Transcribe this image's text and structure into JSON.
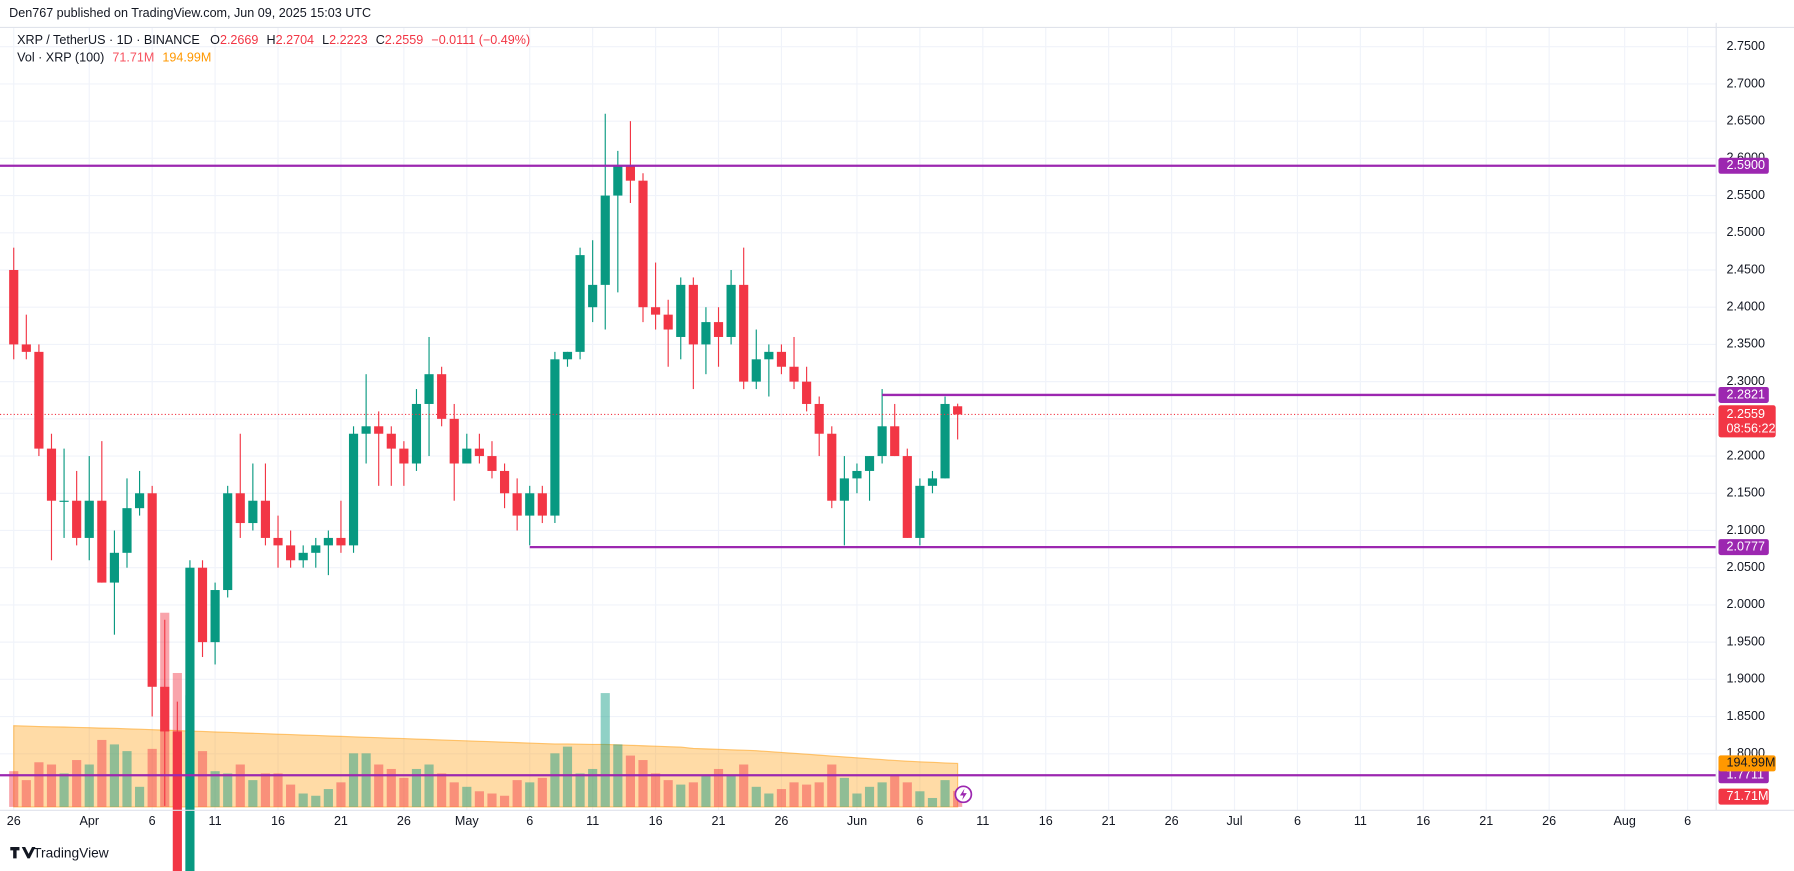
{
  "header": {
    "published": "Den767 published on TradingView.com, Jun 09, 2025 15:03 UTC"
  },
  "chart_data": {
    "type": "candlestick",
    "title": "XRP / TetherUS · 1D · BINANCE",
    "legend": {
      "open_label": "O",
      "open": 2.2669,
      "high_label": "H",
      "high": 2.2704,
      "low_label": "L",
      "low": 2.2223,
      "close_label": "C",
      "close": 2.2559,
      "change": "−0.0111 (−0.49%)"
    },
    "x": [
      "2025-03-26",
      "2025-03-27",
      "2025-03-28",
      "2025-03-29",
      "2025-03-30",
      "2025-03-31",
      "2025-04-01",
      "2025-04-02",
      "2025-04-03",
      "2025-04-04",
      "2025-04-05",
      "2025-04-06",
      "2025-04-07",
      "2025-04-08",
      "2025-04-09",
      "2025-04-10",
      "2025-04-11",
      "2025-04-12",
      "2025-04-13",
      "2025-04-14",
      "2025-04-15",
      "2025-04-16",
      "2025-04-17",
      "2025-04-18",
      "2025-04-19",
      "2025-04-20",
      "2025-04-21",
      "2025-04-22",
      "2025-04-23",
      "2025-04-24",
      "2025-04-25",
      "2025-04-26",
      "2025-04-27",
      "2025-04-28",
      "2025-04-29",
      "2025-04-30",
      "2025-05-01",
      "2025-05-02",
      "2025-05-03",
      "2025-05-04",
      "2025-05-05",
      "2025-05-06",
      "2025-05-07",
      "2025-05-08",
      "2025-05-09",
      "2025-05-10",
      "2025-05-11",
      "2025-05-12",
      "2025-05-13",
      "2025-05-14",
      "2025-05-15",
      "2025-05-16",
      "2025-05-17",
      "2025-05-18",
      "2025-05-19",
      "2025-05-20",
      "2025-05-21",
      "2025-05-22",
      "2025-05-23",
      "2025-05-24",
      "2025-05-25",
      "2025-05-26",
      "2025-05-27",
      "2025-05-28",
      "2025-05-29",
      "2025-05-30",
      "2025-05-31",
      "2025-06-01",
      "2025-06-02",
      "2025-06-03",
      "2025-06-04",
      "2025-06-05",
      "2025-06-06",
      "2025-06-07",
      "2025-06-08",
      "2025-06-09"
    ],
    "open": [
      2.45,
      2.35,
      2.34,
      2.21,
      2.14,
      2.14,
      2.09,
      2.14,
      2.03,
      2.07,
      2.13,
      2.15,
      1.89,
      1.83,
      1.64,
      2.05,
      1.95,
      2.02,
      2.15,
      2.11,
      2.14,
      2.09,
      2.08,
      2.06,
      2.07,
      2.08,
      2.09,
      2.08,
      2.23,
      2.24,
      2.23,
      2.21,
      2.19,
      2.27,
      2.31,
      2.25,
      2.19,
      2.21,
      2.2,
      2.18,
      2.15,
      2.12,
      2.15,
      2.12,
      2.33,
      2.34,
      2.4,
      2.43,
      2.55,
      2.59,
      2.57,
      2.4,
      2.39,
      2.36,
      2.43,
      2.35,
      2.38,
      2.36,
      2.43,
      2.3,
      2.33,
      2.34,
      2.32,
      2.3,
      2.27,
      2.23,
      2.14,
      2.17,
      2.18,
      2.2,
      2.24,
      2.2,
      2.09,
      2.16,
      2.17,
      2.2669
    ],
    "high": [
      2.48,
      2.39,
      2.35,
      2.23,
      2.21,
      2.18,
      2.2,
      2.22,
      2.1,
      2.17,
      2.18,
      2.16,
      1.98,
      1.87,
      2.06,
      2.06,
      2.03,
      2.16,
      2.23,
      2.19,
      2.19,
      2.12,
      2.1,
      2.08,
      2.09,
      2.1,
      2.14,
      2.24,
      2.31,
      2.26,
      2.24,
      2.22,
      2.29,
      2.36,
      2.32,
      2.27,
      2.23,
      2.23,
      2.22,
      2.19,
      2.17,
      2.16,
      2.16,
      2.34,
      2.34,
      2.48,
      2.49,
      2.66,
      2.61,
      2.65,
      2.58,
      2.46,
      2.41,
      2.44,
      2.44,
      2.4,
      2.4,
      2.45,
      2.48,
      2.37,
      2.35,
      2.35,
      2.36,
      2.32,
      2.28,
      2.24,
      2.2,
      2.19,
      2.2,
      2.29,
      2.27,
      2.21,
      2.17,
      2.18,
      2.28,
      2.2704
    ],
    "low": [
      2.33,
      2.33,
      2.2,
      2.06,
      2.09,
      2.08,
      2.06,
      2.03,
      1.96,
      2.05,
      2.12,
      1.85,
      1.73,
      1.63,
      1.62,
      1.93,
      1.92,
      2.01,
      2.09,
      2.1,
      2.08,
      2.05,
      2.05,
      2.05,
      2.05,
      2.04,
      2.07,
      2.07,
      2.19,
      2.16,
      2.16,
      2.16,
      2.18,
      2.2,
      2.24,
      2.14,
      2.19,
      2.19,
      2.17,
      2.13,
      2.1,
      2.08,
      2.11,
      2.11,
      2.32,
      2.33,
      2.38,
      2.37,
      2.42,
      2.54,
      2.38,
      2.37,
      2.32,
      2.33,
      2.29,
      2.31,
      2.32,
      2.35,
      2.29,
      2.29,
      2.28,
      2.31,
      2.29,
      2.26,
      2.2,
      2.13,
      2.08,
      2.15,
      2.14,
      2.19,
      2.2,
      2.09,
      2.08,
      2.15,
      2.17,
      2.2223
    ],
    "close": [
      2.35,
      2.34,
      2.21,
      2.14,
      2.14,
      2.09,
      2.14,
      2.03,
      2.07,
      2.13,
      2.15,
      1.89,
      1.83,
      1.64,
      2.05,
      1.95,
      2.02,
      2.15,
      2.11,
      2.14,
      2.09,
      2.08,
      2.06,
      2.07,
      2.08,
      2.09,
      2.08,
      2.23,
      2.24,
      2.23,
      2.21,
      2.19,
      2.27,
      2.31,
      2.25,
      2.19,
      2.21,
      2.2,
      2.18,
      2.15,
      2.12,
      2.15,
      2.12,
      2.33,
      2.34,
      2.47,
      2.43,
      2.55,
      2.59,
      2.57,
      2.4,
      2.39,
      2.37,
      2.43,
      2.35,
      2.38,
      2.36,
      2.43,
      2.3,
      2.33,
      2.34,
      2.32,
      2.3,
      2.27,
      2.23,
      2.14,
      2.17,
      2.18,
      2.2,
      2.24,
      2.2,
      2.09,
      2.16,
      2.17,
      2.27,
      2.2559
    ],
    "up_color": "#089981",
    "down_color": "#f23645",
    "ylim": [
      1.724,
      2.782
    ],
    "yticks": [
      {
        "value": 1.8,
        "label": "1.8000"
      },
      {
        "value": 1.85,
        "label": "1.8500"
      },
      {
        "value": 1.9,
        "label": "1.9000"
      },
      {
        "value": 1.95,
        "label": "1.9500"
      },
      {
        "value": 2.0,
        "label": "2.0000"
      },
      {
        "value": 2.05,
        "label": "2.0500"
      },
      {
        "value": 2.1,
        "label": "2.1000"
      },
      {
        "value": 2.15,
        "label": "2.1500"
      },
      {
        "value": 2.2,
        "label": "2.2000"
      },
      {
        "value": 2.25,
        "label": "2.2500"
      },
      {
        "value": 2.3,
        "label": "2.3000"
      },
      {
        "value": 2.35,
        "label": "2.3500"
      },
      {
        "value": 2.4,
        "label": "2.4000"
      },
      {
        "value": 2.45,
        "label": "2.4500"
      },
      {
        "value": 2.5,
        "label": "2.5000"
      },
      {
        "value": 2.55,
        "label": "2.5500"
      },
      {
        "value": 2.6,
        "label": "2.6000"
      },
      {
        "value": 2.65,
        "label": "2.6500"
      },
      {
        "value": 2.7,
        "label": "2.7000"
      },
      {
        "value": 2.75,
        "label": "2.7500"
      }
    ],
    "xticks": [
      {
        "value": "2025-03-26",
        "label": "26"
      },
      {
        "value": "2025-04-01",
        "label": "Apr"
      },
      {
        "value": "2025-04-06",
        "label": "6"
      },
      {
        "value": "2025-04-11",
        "label": "11"
      },
      {
        "value": "2025-04-16",
        "label": "16"
      },
      {
        "value": "2025-04-21",
        "label": "21"
      },
      {
        "value": "2025-04-26",
        "label": "26"
      },
      {
        "value": "2025-05-01",
        "label": "May"
      },
      {
        "value": "2025-05-06",
        "label": "6"
      },
      {
        "value": "2025-05-11",
        "label": "11"
      },
      {
        "value": "2025-05-16",
        "label": "16"
      },
      {
        "value": "2025-05-21",
        "label": "21"
      },
      {
        "value": "2025-05-26",
        "label": "26"
      },
      {
        "value": "2025-06-01",
        "label": "Jun"
      },
      {
        "value": "2025-06-06",
        "label": "6"
      },
      {
        "value": "2025-06-11",
        "label": "11"
      },
      {
        "value": "2025-06-16",
        "label": "16"
      },
      {
        "value": "2025-06-21",
        "label": "21"
      },
      {
        "value": "2025-06-26",
        "label": "26"
      },
      {
        "value": "2025-07-01",
        "label": "Jul"
      },
      {
        "value": "2025-07-06",
        "label": "6"
      },
      {
        "value": "2025-07-11",
        "label": "11"
      },
      {
        "value": "2025-07-16",
        "label": "16"
      },
      {
        "value": "2025-07-21",
        "label": "21"
      },
      {
        "value": "2025-07-26",
        "label": "26"
      },
      {
        "value": "2025-08-01",
        "label": "Aug"
      },
      {
        "value": "2025-08-06",
        "label": "6"
      }
    ],
    "grid": true,
    "volume": {
      "title": "Vol · XRP (100)",
      "values": [
        160,
        120,
        200,
        190,
        150,
        210,
        190,
        300,
        280,
        250,
        90,
        260,
        870,
        600,
        500,
        250,
        160,
        150,
        190,
        120,
        150,
        150,
        100,
        60,
        50,
        80,
        110,
        240,
        240,
        190,
        170,
        130,
        170,
        190,
        150,
        110,
        90,
        70,
        60,
        50,
        120,
        110,
        130,
        240,
        270,
        150,
        170,
        510,
        280,
        230,
        210,
        150,
        120,
        100,
        110,
        140,
        170,
        140,
        190,
        90,
        60,
        80,
        110,
        100,
        110,
        190,
        130,
        60,
        90,
        110,
        140,
        110,
        70,
        40,
        120,
        71.71
      ],
      "last_label": "71.71M",
      "ma": [
        364,
        362,
        360,
        359,
        358,
        356,
        355,
        353,
        352,
        350,
        348,
        346,
        344,
        342,
        340,
        338,
        336,
        334,
        332,
        330,
        328,
        326,
        324,
        322,
        320,
        318,
        316,
        314,
        312,
        310,
        308,
        306,
        304,
        302,
        300,
        298,
        296,
        294,
        292,
        290,
        288,
        286,
        284,
        282,
        282,
        281,
        280,
        280,
        278,
        276,
        274,
        272,
        270,
        268,
        262,
        260,
        258,
        256,
        254,
        252,
        248,
        244,
        240,
        236,
        232,
        228,
        224,
        220,
        216,
        212,
        208,
        205,
        202,
        200,
        197,
        194.99
      ],
      "ma_label": "194.99M",
      "ma_color": "#ff9800"
    },
    "levels": [
      {
        "value": 2.59,
        "label": "2.5900"
      },
      {
        "value": 2.2821,
        "label": "2.2821",
        "from": "2025-06-03"
      },
      {
        "value": 2.0777,
        "label": "2.0777",
        "from": "2025-05-06"
      },
      {
        "value": 1.7711,
        "label": "1.7711"
      }
    ],
    "level_color": "#9c27b0",
    "countdown": "08:56:22"
  },
  "footer": {
    "brand": "TradingView"
  }
}
